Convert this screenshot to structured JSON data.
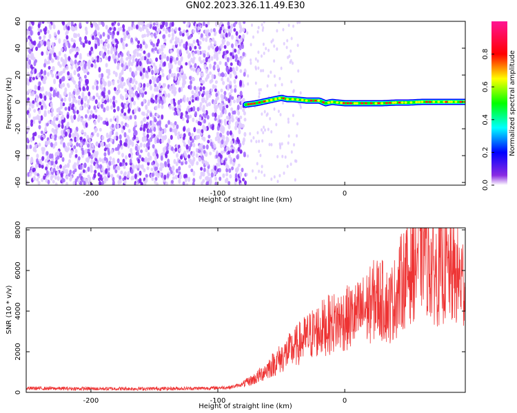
{
  "title": "GN02.2023.326.11.49.E30",
  "chart_data": [
    {
      "type": "heatmap",
      "xlabel": "Height of straight line (km)",
      "ylabel": "Frequency (Hz)",
      "xlim": [
        -251,
        95
      ],
      "ylim": [
        -62,
        60
      ],
      "x_ticks": [
        -200,
        -100,
        0
      ],
      "y_ticks": [
        -60,
        -40,
        -20,
        0,
        20,
        40,
        60
      ],
      "colorbar": {
        "label": "Normalized spectral amplitude",
        "range": [
          0.0,
          1.0
        ],
        "ticks": [
          0.0,
          0.2,
          0.4,
          0.6,
          0.8
        ],
        "colors": [
          "#ffffff",
          "#8a2be2",
          "#0000ff",
          "#00ffff",
          "#00ff00",
          "#ffff00",
          "#ff0000",
          "#ff1493"
        ]
      },
      "noise_region": {
        "x_from": -251,
        "x_to": -78,
        "color": "#7b22f0"
      },
      "signal_ridge": {
        "x": [
          -78,
          -70,
          -65,
          -60,
          -55,
          -50,
          -45,
          -40,
          -30,
          -20,
          -15,
          -10,
          0,
          10,
          20,
          30,
          40,
          50,
          60,
          70,
          80,
          95
        ],
        "y": [
          -2,
          -1,
          0,
          1,
          2,
          3,
          2,
          2,
          1,
          1,
          -1,
          0,
          -1,
          -1,
          -1,
          -1,
          -0.5,
          -0.5,
          0,
          0,
          0,
          0
        ]
      }
    },
    {
      "type": "line",
      "xlabel": "Height of straight line (km)",
      "ylabel": "SNR (10 * v/v)",
      "xlim": [
        -251,
        95
      ],
      "ylim": [
        0,
        8100
      ],
      "x_ticks": [
        -200,
        -100,
        0
      ],
      "y_ticks": [
        0,
        2000,
        4000,
        6000,
        8000
      ],
      "color": "#ee3333",
      "x": [
        -251,
        -200,
        -150,
        -110,
        -90,
        -80,
        -70,
        -60,
        -50,
        -40,
        -30,
        -20,
        -10,
        0,
        10,
        20,
        25,
        30,
        35,
        40,
        45,
        50,
        55,
        60,
        63,
        65,
        70,
        75,
        80,
        85,
        90,
        95
      ],
      "y": [
        200,
        180,
        180,
        200,
        250,
        400,
        700,
        1200,
        1700,
        2200,
        2700,
        3100,
        3400,
        3600,
        3800,
        4300,
        4700,
        4500,
        4200,
        4700,
        5500,
        5900,
        6400,
        7200,
        7600,
        6600,
        6000,
        5800,
        6100,
        5800,
        5600,
        5400
      ]
    }
  ]
}
